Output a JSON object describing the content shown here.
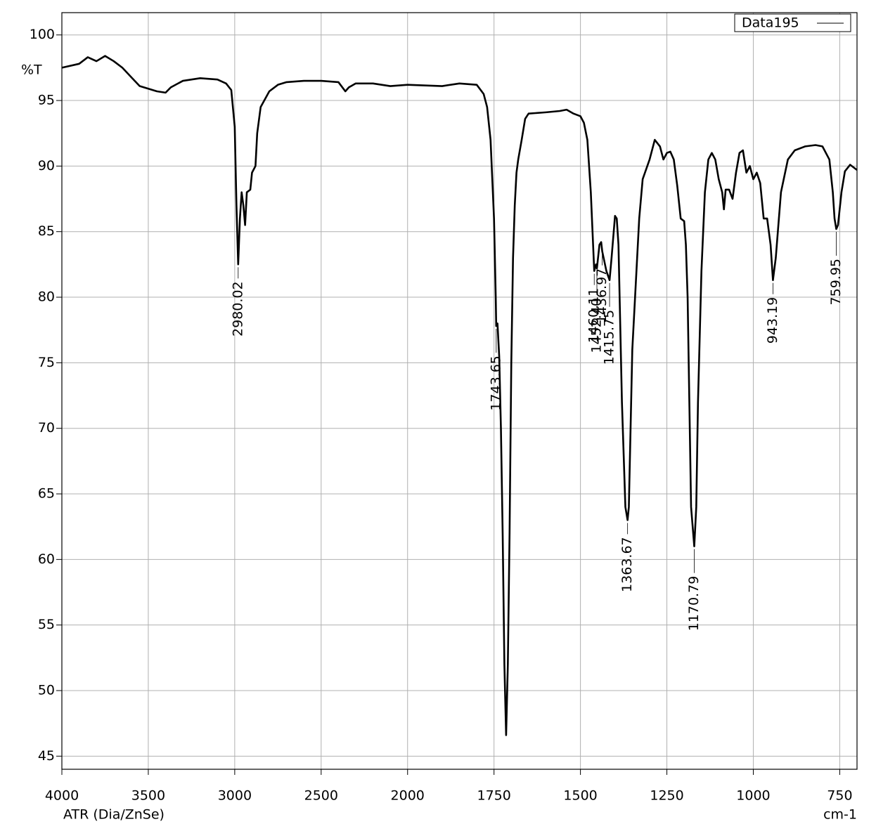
{
  "chart_data": {
    "type": "line",
    "ylabel": "%T",
    "xlabel": "cm-1",
    "footnote": "ATR (Dia/ZnSe)",
    "x": [
      4000,
      3900,
      3850,
      3800,
      3750,
      3700,
      3650,
      3600,
      3550,
      3500,
      3450,
      3400,
      3370,
      3300,
      3200,
      3100,
      3050,
      3020,
      3000,
      2990,
      2980.02,
      2970,
      2960,
      2950,
      2940,
      2930,
      2910,
      2900,
      2880,
      2870,
      2850,
      2800,
      2750,
      2700,
      2600,
      2500,
      2400,
      2360,
      2340,
      2300,
      2200,
      2100,
      2000,
      1900,
      1850,
      1800,
      1780,
      1770,
      1760,
      1750,
      1745,
      1743.65,
      1740,
      1735,
      1730,
      1725,
      1720,
      1715,
      1710,
      1705,
      1700,
      1695,
      1690,
      1685,
      1680,
      1670,
      1660,
      1650,
      1600,
      1560,
      1540,
      1520,
      1500,
      1490,
      1480,
      1470,
      1460.11,
      1455,
      1452.4,
      1445,
      1440,
      1436.97,
      1425,
      1415.75,
      1410,
      1400,
      1395,
      1390,
      1385,
      1380,
      1375,
      1370,
      1363.67,
      1360,
      1355,
      1350,
      1340,
      1330,
      1320,
      1300,
      1285,
      1270,
      1260,
      1250,
      1240,
      1230,
      1220,
      1210,
      1200,
      1195,
      1190,
      1185,
      1180,
      1170.79,
      1165,
      1160,
      1150,
      1140,
      1130,
      1120,
      1110,
      1100,
      1090,
      1085,
      1080,
      1070,
      1060,
      1050,
      1040,
      1030,
      1020,
      1010,
      1000,
      990,
      980,
      970,
      960,
      950,
      943.19,
      935,
      920,
      900,
      880,
      850,
      820,
      800,
      780,
      770,
      765,
      759.95,
      755,
      745,
      735,
      720,
      700
    ],
    "series": [
      {
        "name": "Data195",
        "color": "#000000",
        "values": [
          97.5,
          97.8,
          98.3,
          98.0,
          98.4,
          98.0,
          97.5,
          96.8,
          96.1,
          95.9,
          95.7,
          95.6,
          96.0,
          96.5,
          96.7,
          96.6,
          96.3,
          95.8,
          93,
          87,
          82.5,
          86,
          88,
          87,
          85.5,
          88,
          88.2,
          89.5,
          90,
          92.5,
          94.5,
          95.7,
          96.2,
          96.4,
          96.5,
          96.5,
          96.4,
          95.7,
          96.0,
          96.3,
          96.3,
          96.1,
          96.2,
          96.1,
          96.3,
          96.2,
          95.5,
          94.5,
          92,
          86,
          80,
          77.8,
          78,
          75.5,
          70,
          62,
          52,
          46.6,
          52,
          62,
          75,
          83,
          87,
          89.5,
          90.5,
          92,
          93.6,
          94,
          94.1,
          94.2,
          94.3,
          94.0,
          93.8,
          93.3,
          92,
          88,
          82,
          82.5,
          82.2,
          84,
          84.2,
          83.5,
          82,
          81.3,
          83,
          86.2,
          86,
          84,
          78,
          72,
          68,
          64,
          63,
          64,
          70,
          76,
          81,
          86,
          89,
          90.5,
          92,
          91.5,
          90.5,
          91,
          91.1,
          90.5,
          88.5,
          86,
          85.8,
          84,
          80,
          72,
          64,
          61,
          64,
          72,
          82,
          88,
          90.5,
          91,
          90.5,
          89,
          88,
          86.7,
          88.2,
          88.2,
          87.5,
          89.5,
          91,
          91.2,
          89.5,
          90,
          89,
          89.5,
          88.7,
          86,
          86,
          84,
          81.3,
          83,
          88,
          90.5,
          91.2,
          91.5,
          91.6,
          91.5,
          90.5,
          88,
          86,
          85.2,
          85.5,
          88,
          89.6,
          90.1,
          89.7
        ]
      }
    ],
    "annotations": [
      {
        "x": 2980.02,
        "label": "2980.02"
      },
      {
        "x": 1743.65,
        "label": "1743.65"
      },
      {
        "x": 1460.11,
        "label": "1460.11"
      },
      {
        "x": 1452.4,
        "label": "1452.40"
      },
      {
        "x": 1436.97,
        "label": "1436.97"
      },
      {
        "x": 1415.75,
        "label": "1415.75"
      },
      {
        "x": 1363.67,
        "label": "1363.67"
      },
      {
        "x": 1170.79,
        "label": "1170.79"
      },
      {
        "x": 943.19,
        "label": "943.19"
      },
      {
        "x": 759.95,
        "label": "759.95"
      }
    ],
    "xlim": [
      4000,
      700
    ],
    "xticks": [
      4000,
      3500,
      3000,
      2500,
      2000,
      1750,
      1500,
      1250,
      1000,
      750
    ],
    "ylim": [
      44,
      101.7
    ],
    "yticks": [
      45,
      50,
      55,
      60,
      65,
      70,
      75,
      80,
      85,
      90,
      95,
      100
    ],
    "grid": true,
    "legend": "top-right"
  }
}
